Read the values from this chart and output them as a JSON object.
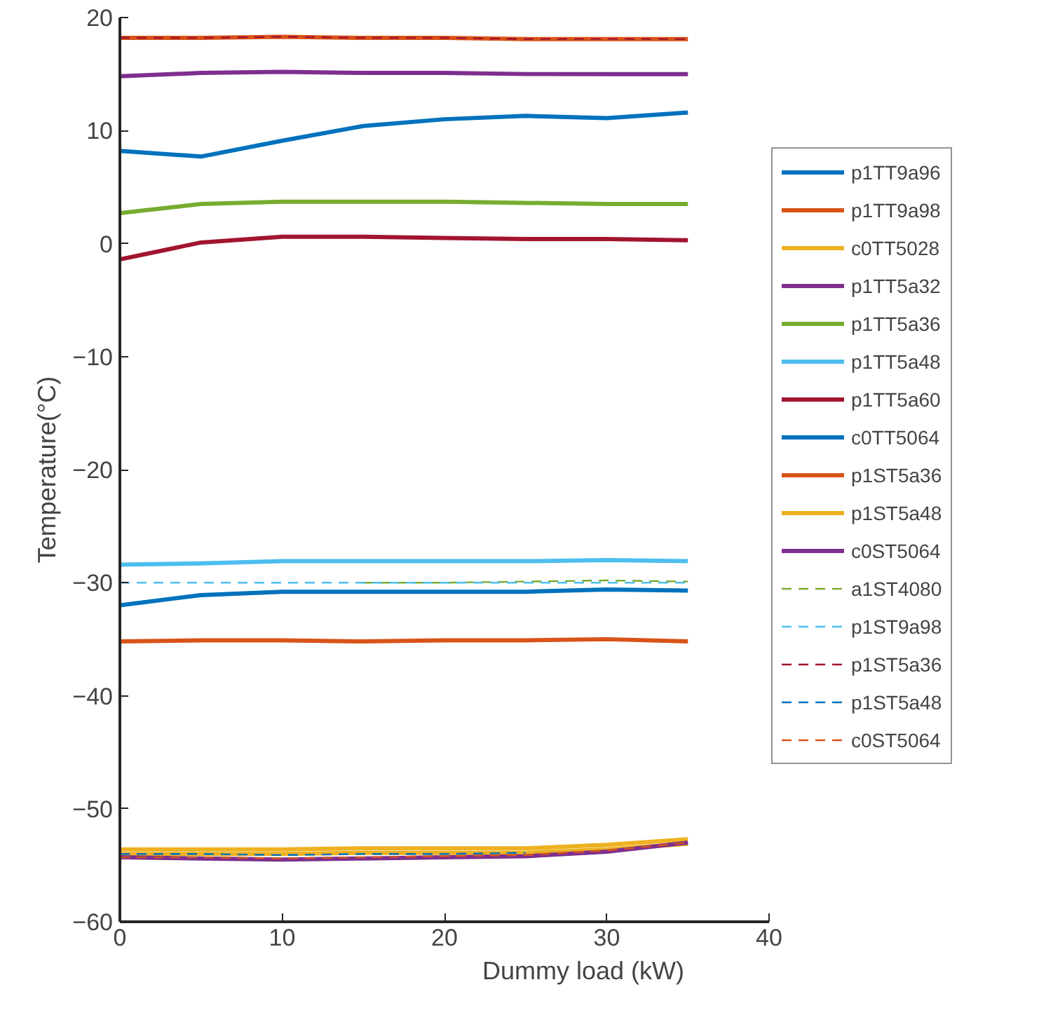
{
  "chart_data": {
    "type": "line",
    "xlabel": "Dummy load (kW)",
    "ylabel": "Temperature(°C)",
    "x": [
      0,
      5,
      10,
      15,
      20,
      25,
      30,
      35
    ],
    "xlim": [
      0,
      40
    ],
    "xticks": [
      0,
      10,
      20,
      30,
      40
    ],
    "ylim": [
      -60,
      20
    ],
    "yticks": [
      -60,
      -50,
      -40,
      -30,
      -20,
      -10,
      0,
      10,
      20
    ],
    "grid": false,
    "legend": "right",
    "marker": "none",
    "series": [
      {
        "name": "p1TT9a96",
        "color": "#0072bd",
        "line_style": "solid",
        "values": [
          8.2,
          7.7,
          9.1,
          10.4,
          11.0,
          11.3,
          11.1,
          11.6
        ]
      },
      {
        "name": "p1TT9a98",
        "color": "#d95319",
        "line_style": "solid",
        "values": [
          18.2,
          18.2,
          18.3,
          18.2,
          18.2,
          18.1,
          18.1,
          18.1
        ]
      },
      {
        "name": "c0TT5028",
        "color": "#edb120",
        "line_style": "solid",
        "values": [
          -53.6,
          -53.6,
          -53.6,
          -53.5,
          -53.5,
          -53.5,
          -53.2,
          -52.7
        ]
      },
      {
        "name": "p1TT5a32",
        "color": "#7e2f8e",
        "line_style": "solid",
        "values": [
          14.8,
          15.1,
          15.2,
          15.1,
          15.1,
          15.0,
          15.0,
          15.0
        ]
      },
      {
        "name": "p1TT5a36",
        "color": "#77ac30",
        "line_style": "solid",
        "values": [
          2.7,
          3.5,
          3.7,
          3.7,
          3.7,
          3.6,
          3.5,
          3.5
        ]
      },
      {
        "name": "p1TT5a48",
        "color": "#4dbeee",
        "line_style": "solid",
        "values": [
          -28.4,
          -28.3,
          -28.1,
          -28.1,
          -28.1,
          -28.1,
          -28.0,
          -28.1
        ]
      },
      {
        "name": "p1TT5a60",
        "color": "#a2142f",
        "line_style": "solid",
        "values": [
          -1.4,
          0.1,
          0.6,
          0.6,
          0.5,
          0.4,
          0.4,
          0.3
        ]
      },
      {
        "name": "c0TT5064",
        "color": "#0072bd",
        "line_style": "solid",
        "values": [
          -32.0,
          -31.1,
          -30.8,
          -30.8,
          -30.8,
          -30.8,
          -30.6,
          -30.7
        ]
      },
      {
        "name": "p1ST5a36",
        "color": "#d95319",
        "line_style": "solid",
        "values": [
          -35.2,
          -35.1,
          -35.1,
          -35.2,
          -35.1,
          -35.1,
          -35.0,
          -35.2
        ]
      },
      {
        "name": "p1ST5a48",
        "color": "#edb120",
        "line_style": "solid",
        "values": [
          -54.0,
          -54.0,
          -54.0,
          -53.9,
          -53.9,
          -53.9,
          -53.6,
          -53.1
        ]
      },
      {
        "name": "c0ST5064",
        "color": "#7e2f8e",
        "line_style": "solid",
        "values": [
          -54.3,
          -54.4,
          -54.5,
          -54.4,
          -54.3,
          -54.2,
          -53.8,
          -53.0
        ]
      },
      {
        "name": "a1ST4080",
        "color": "#77ac30",
        "line_style": "dashed",
        "values": [
          null,
          null,
          null,
          -30.0,
          -30.0,
          -29.9,
          -29.8,
          -29.9
        ]
      },
      {
        "name": "p1ST9a98",
        "color": "#4dbeee",
        "line_style": "dashed",
        "values": [
          -30.0,
          -30.0,
          -30.0,
          -30.0,
          -30.0,
          -30.0,
          -30.0,
          -30.0
        ]
      },
      {
        "name": "p1ST5a36",
        "color": "#a2142f",
        "line_style": "dashed",
        "values": [
          18.2,
          18.2,
          18.3,
          18.2,
          18.2,
          18.1,
          18.1,
          18.1
        ]
      },
      {
        "name": "p1ST5a48",
        "color": "#0072bd",
        "line_style": "dashed",
        "values": [
          -54.0,
          -54.0,
          -54.1,
          -54.0,
          -54.0,
          -53.9,
          null,
          null
        ]
      },
      {
        "name": "c0ST5064",
        "color": "#d95319",
        "line_style": "dashed",
        "values": [
          -54.3,
          -54.3,
          -54.4,
          -54.3,
          -54.2,
          -54.1,
          -53.7,
          -53.0
        ]
      }
    ]
  }
}
